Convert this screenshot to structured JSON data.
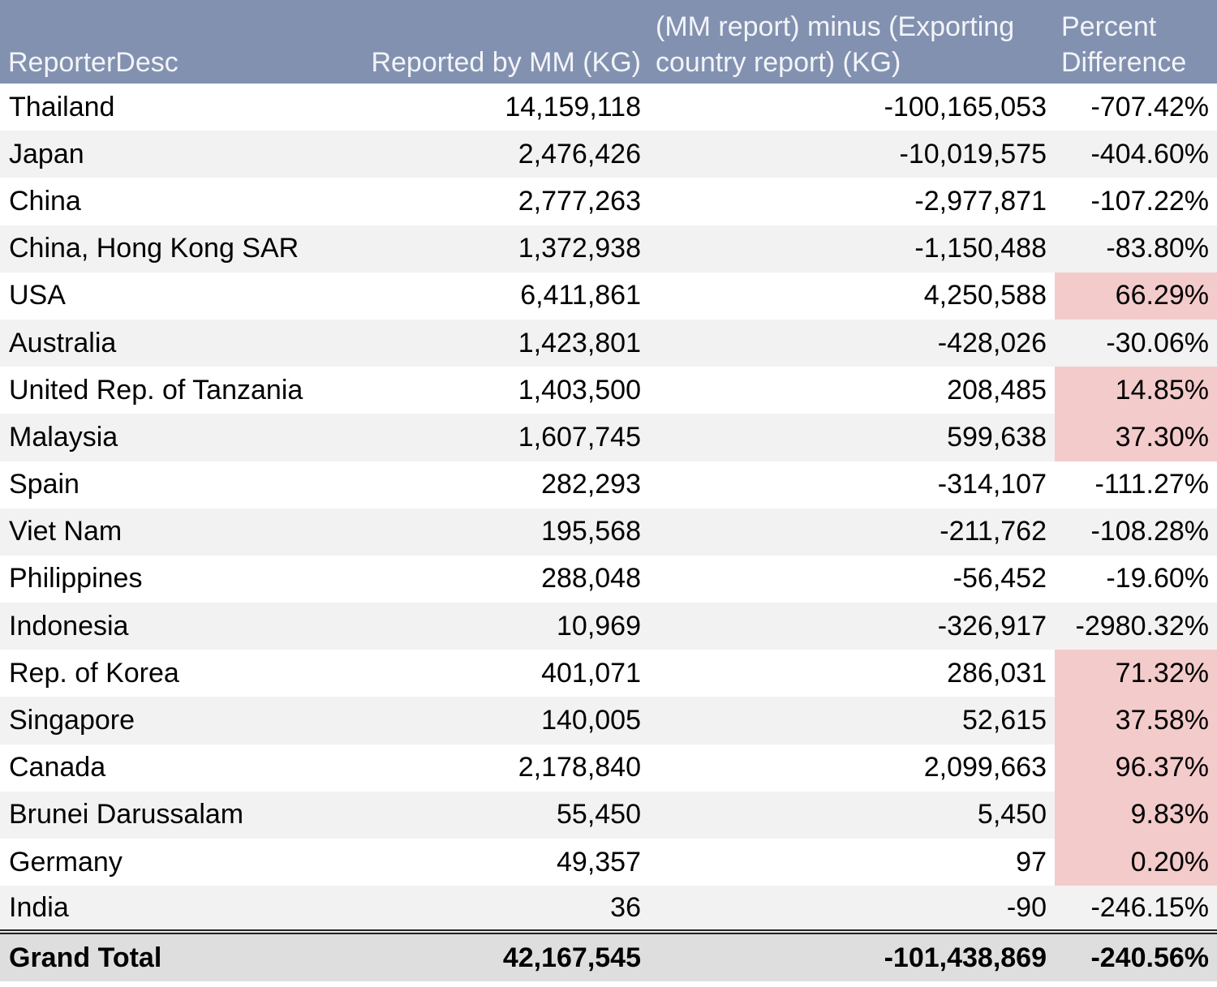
{
  "header": {
    "col1": "ReporterDesc",
    "col2": "Reported by MM (KG)",
    "col3": "(MM report) minus (Exporting country report) (KG)",
    "col4": "Percent Difference"
  },
  "highlight_color": "#f3cbcb",
  "rows": [
    {
      "country": "Thailand",
      "reported": "14,159,118",
      "diff": "-100,165,053",
      "pct": "-707.42%",
      "hl": false
    },
    {
      "country": "Japan",
      "reported": "2,476,426",
      "diff": "-10,019,575",
      "pct": "-404.60%",
      "hl": false
    },
    {
      "country": "China",
      "reported": "2,777,263",
      "diff": "-2,977,871",
      "pct": "-107.22%",
      "hl": false
    },
    {
      "country": "China, Hong Kong SAR",
      "reported": "1,372,938",
      "diff": "-1,150,488",
      "pct": "-83.80%",
      "hl": false
    },
    {
      "country": "USA",
      "reported": "6,411,861",
      "diff": "4,250,588",
      "pct": "66.29%",
      "hl": true
    },
    {
      "country": "Australia",
      "reported": "1,423,801",
      "diff": "-428,026",
      "pct": "-30.06%",
      "hl": false
    },
    {
      "country": "United Rep. of Tanzania",
      "reported": "1,403,500",
      "diff": "208,485",
      "pct": "14.85%",
      "hl": true
    },
    {
      "country": "Malaysia",
      "reported": "1,607,745",
      "diff": "599,638",
      "pct": "37.30%",
      "hl": true
    },
    {
      "country": "Spain",
      "reported": "282,293",
      "diff": "-314,107",
      "pct": "-111.27%",
      "hl": false
    },
    {
      "country": "Viet Nam",
      "reported": "195,568",
      "diff": "-211,762",
      "pct": "-108.28%",
      "hl": false
    },
    {
      "country": "Philippines",
      "reported": "288,048",
      "diff": "-56,452",
      "pct": "-19.60%",
      "hl": false
    },
    {
      "country": "Indonesia",
      "reported": "10,969",
      "diff": "-326,917",
      "pct": "-2980.32%",
      "hl": false
    },
    {
      "country": "Rep. of Korea",
      "reported": "401,071",
      "diff": "286,031",
      "pct": "71.32%",
      "hl": true
    },
    {
      "country": "Singapore",
      "reported": "140,005",
      "diff": "52,615",
      "pct": "37.58%",
      "hl": true
    },
    {
      "country": "Canada",
      "reported": "2,178,840",
      "diff": "2,099,663",
      "pct": "96.37%",
      "hl": true
    },
    {
      "country": "Brunei Darussalam",
      "reported": "55,450",
      "diff": "5,450",
      "pct": "9.83%",
      "hl": true
    },
    {
      "country": "Germany",
      "reported": "49,357",
      "diff": "97",
      "pct": "0.20%",
      "hl": true
    },
    {
      "country": "India",
      "reported": "36",
      "diff": "-90",
      "pct": "-246.15%",
      "hl": false
    }
  ],
  "total": {
    "label": "Grand Total",
    "reported": "42,167,545",
    "diff": "-101,438,869",
    "pct": "-240.56%"
  }
}
